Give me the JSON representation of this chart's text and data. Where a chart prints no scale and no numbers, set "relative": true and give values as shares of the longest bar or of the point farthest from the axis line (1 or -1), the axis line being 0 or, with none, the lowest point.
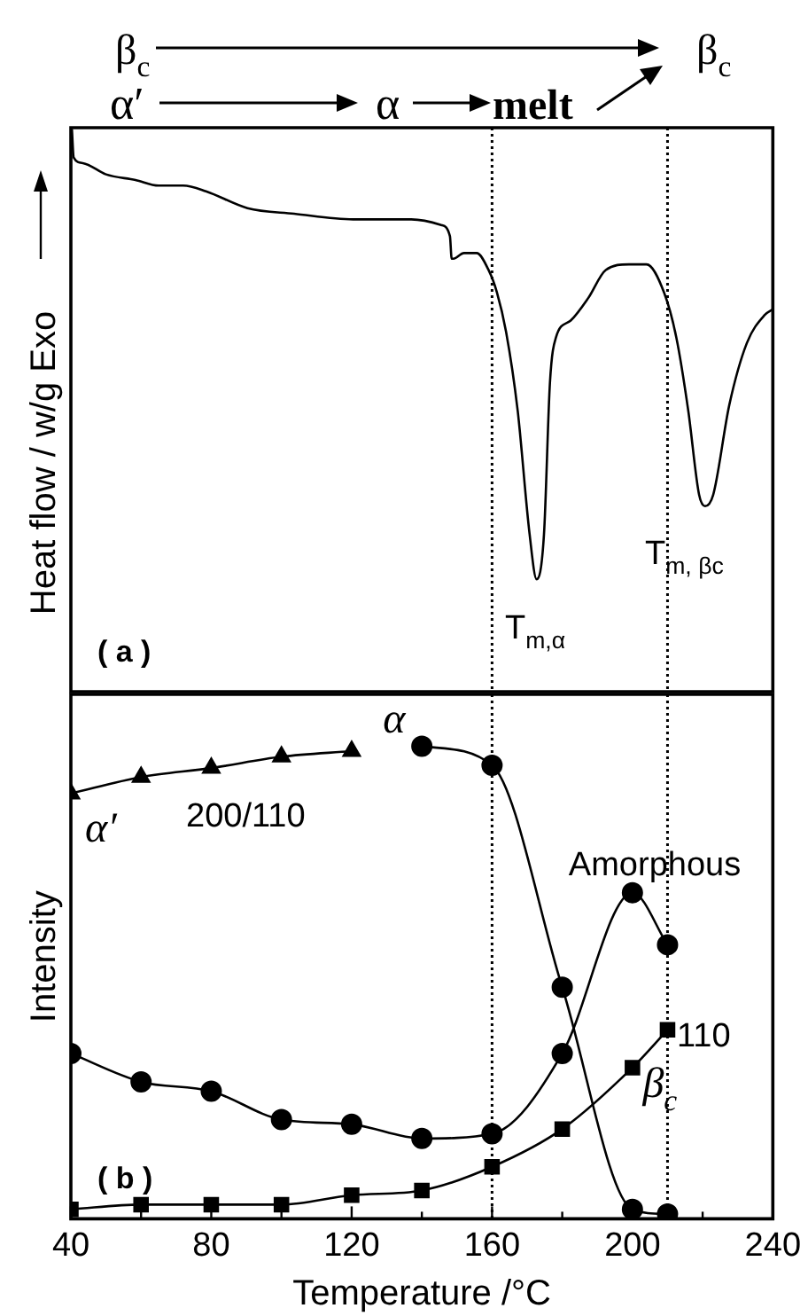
{
  "chart_data": [
    {
      "type": "line",
      "relative": true,
      "ylabel": "Heat flow / w/g Exo",
      "xlim": [
        40,
        240
      ],
      "tick_labels": false,
      "annotations": [
        "β$_{c}$",
        "β$_{c}$",
        "α′",
        "α",
        "melt",
        "T$_{m,α}$",
        "T$_{m, βc}$",
        "( a )"
      ],
      "ref_lines": [
        {
          "axis": "x",
          "value": 160,
          "line_style": "dotted"
        },
        {
          "axis": "x",
          "value": 210,
          "line_style": "dotted"
        }
      ],
      "series": [
        {
          "color": "#000000",
          "x": [
            40.3,
            40.8,
            43.4,
            50,
            58.4,
            65,
            72,
            78.5,
            90.3,
            103.6,
            120.4,
            137,
            145.5,
            148,
            148.5,
            149,
            152,
            155.6,
            159,
            161.4,
            164,
            167.3,
            170.7,
            172.7,
            174.8,
            176.5,
            178.2,
            182.4,
            187.4,
            192.4,
            199,
            204,
            209,
            212.5,
            215.9,
            219,
            220.7,
            223,
            227.6,
            232.6,
            237.7,
            240
          ],
          "values": [
            1.0,
            0.95,
            0.94,
            0.92,
            0.91,
            0.9,
            0.9,
            0.89,
            0.86,
            0.85,
            0.84,
            0.84,
            0.83,
            0.81,
            0.77,
            0.77,
            0.78,
            0.78,
            0.75,
            0.71,
            0.64,
            0.5,
            0.28,
            0.2,
            0.28,
            0.55,
            0.63,
            0.66,
            0.7,
            0.75,
            0.76,
            0.76,
            0.71,
            0.63,
            0.5,
            0.35,
            0.33,
            0.35,
            0.51,
            0.62,
            0.67,
            0.68
          ]
        }
      ]
    },
    {
      "type": "line",
      "relative": true,
      "xlabel": "Temperature /°C",
      "ylabel": "Intensity",
      "xlim": [
        40,
        240
      ],
      "xticks": [
        40,
        {
          "value": 60,
          "label": null
        },
        80,
        {
          "value": 100,
          "label": null
        },
        120,
        {
          "value": 140,
          "label": null
        },
        160,
        {
          "value": 180,
          "label": null
        },
        200,
        {
          "value": 220,
          "label": null
        },
        240
      ],
      "annotations": [
        "200/110",
        "110",
        "( b )"
      ],
      "ref_lines": [
        {
          "axis": "x",
          "value": 160,
          "line_style": "dotted"
        },
        {
          "axis": "x",
          "value": 210,
          "line_style": "dotted"
        }
      ],
      "series": [
        {
          "name": "α′",
          "color": "#000000",
          "marker": "triangle",
          "x": [
            40,
            60,
            80,
            100,
            120
          ],
          "values": [
            0.9,
            0.935,
            0.954,
            0.978,
            0.99
          ]
        },
        {
          "name": "α",
          "color": "#000000",
          "marker": "circle",
          "x": [
            140,
            160,
            180,
            200,
            210
          ],
          "values": [
            1.0,
            0.96,
            0.49,
            0.02,
            0.01
          ]
        },
        {
          "name": "Amorphous",
          "color": "#000000",
          "marker": "circle",
          "x": [
            40,
            60,
            80,
            100,
            120,
            140,
            160,
            180,
            200,
            210
          ],
          "values": [
            0.35,
            0.29,
            0.27,
            0.21,
            0.2,
            0.17,
            0.18,
            0.35,
            0.69,
            0.58
          ]
        },
        {
          "name": "β$_{c}$",
          "color": "#000000",
          "marker": "square",
          "x": [
            40,
            60,
            80,
            100,
            120,
            140,
            160,
            180,
            200,
            210
          ],
          "values": [
            0.02,
            0.03,
            0.03,
            0.03,
            0.05,
            0.06,
            0.11,
            0.19,
            0.32,
            0.4
          ]
        }
      ]
    }
  ]
}
